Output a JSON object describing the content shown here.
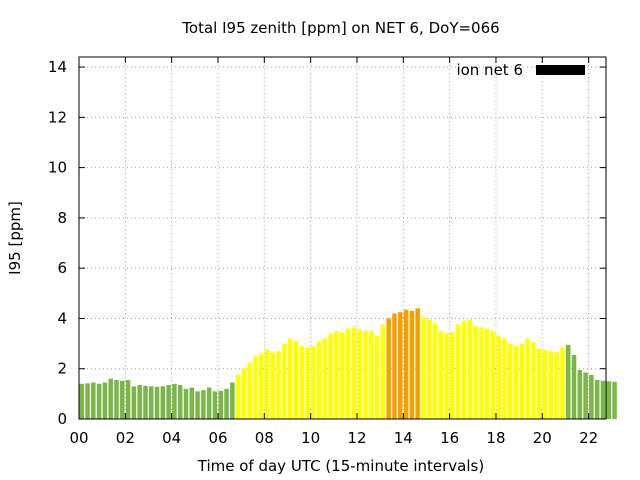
{
  "chart_data": {
    "type": "bar",
    "title": "Total I95 zenith [ppm] on NET 6, DoY=066",
    "xlabel": "Time of day UTC (15-minute intervals)",
    "ylabel": "I95 [ppm]",
    "xlim": [
      0,
      22.75
    ],
    "ylim": [
      0,
      14.4
    ],
    "x_ticks": [
      "00",
      "02",
      "04",
      "06",
      "08",
      "10",
      "12",
      "14",
      "16",
      "18",
      "20",
      "22"
    ],
    "y_ticks": [
      "0",
      "2",
      "4",
      "6",
      "8",
      "10",
      "12",
      "14"
    ],
    "grid": true,
    "legend": {
      "position": "top-right",
      "entries": [
        {
          "label": "ion net 6",
          "color": "#000000"
        }
      ]
    },
    "interval_hours": 0.25,
    "colors": {
      "green": "#7ab648",
      "yellow": "#ffff00",
      "orange": "#f5a000"
    },
    "thresholds": {
      "yellow_from_hour": 6.75,
      "orange_from_hour": 13.25,
      "orange_to_hour": 14.75,
      "green_from_hour": 21.0
    },
    "series": [
      {
        "start_hour": 0,
        "values": [
          1.4,
          1.42,
          1.45,
          1.4,
          1.45,
          1.6,
          1.55,
          1.52,
          1.55,
          1.3,
          1.35,
          1.32,
          1.3,
          1.28,
          1.3,
          1.35,
          1.4,
          1.35,
          1.2,
          1.25,
          1.1,
          1.15,
          1.25,
          1.1,
          1.12,
          1.2,
          1.45,
          1.75,
          2.0,
          2.25,
          2.5,
          2.6,
          2.75,
          2.65,
          2.7,
          3.0,
          3.2,
          3.1,
          2.9,
          2.85,
          2.9,
          3.1,
          3.2,
          3.4,
          3.5,
          3.45,
          3.6,
          3.65,
          3.55,
          3.5,
          3.5,
          3.3,
          3.75,
          4.0,
          4.2,
          4.25,
          4.35,
          4.3,
          4.4,
          4.05,
          3.95,
          3.8,
          3.5,
          3.4,
          3.45,
          3.75,
          3.9,
          3.95,
          3.7,
          3.65,
          3.6,
          3.5,
          3.3,
          3.2,
          3.0,
          2.9,
          3.0,
          3.2,
          3.05,
          2.8,
          2.75,
          2.7,
          2.65,
          2.85,
          2.95,
          2.55,
          1.95,
          1.85,
          1.75,
          1.55,
          1.52,
          1.5,
          1.48
        ]
      }
    ]
  }
}
